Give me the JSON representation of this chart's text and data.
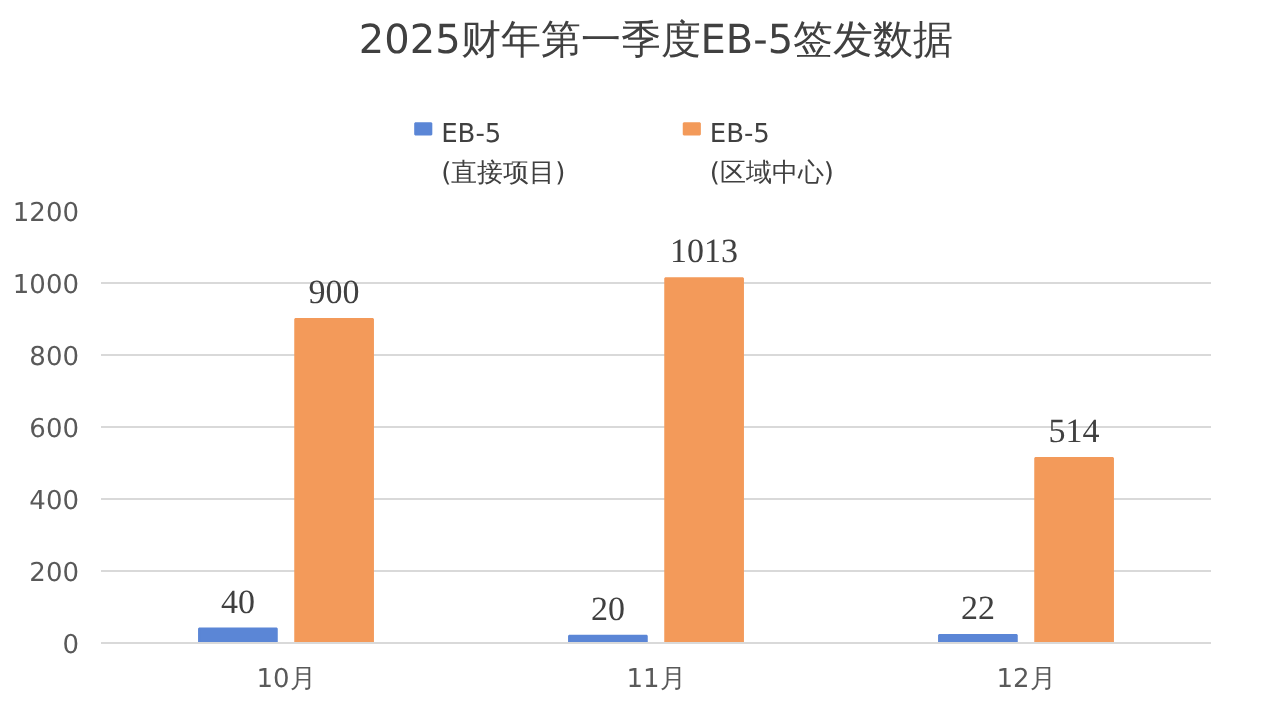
{
  "chart_data": {
    "type": "bar",
    "title": "2025财年第一季度EB-5签发数据",
    "categories": [
      "10月",
      "11月",
      "12月"
    ],
    "series": [
      {
        "name": "EB-5\n(直接项目)",
        "color": "#5b86d6",
        "values": [
          40,
          20,
          22
        ]
      },
      {
        "name": "EB-5\n(区域中心)",
        "color": "#f39a5a",
        "values": [
          900,
          1013,
          514
        ]
      }
    ],
    "ylim": [
      0,
      1200
    ],
    "yticks": [
      0,
      200,
      400,
      600,
      800,
      1000,
      1200
    ],
    "grid": "y",
    "legend": "top",
    "data_labels": true
  }
}
